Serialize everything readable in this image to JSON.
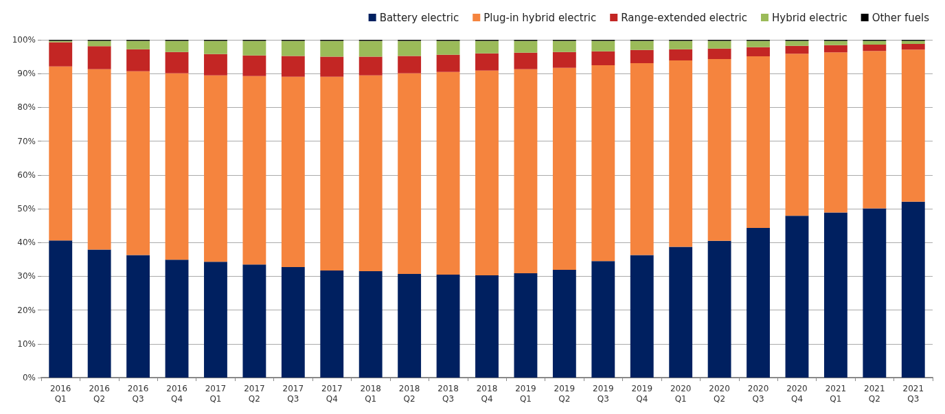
{
  "chart_data": {
    "type": "bar",
    "stacked": true,
    "legend": "top right",
    "grid": "y",
    "categories": [
      "2016\nQ1",
      "2016\nQ2",
      "2016\nQ3",
      "2016\nQ4",
      "2017\nQ1",
      "2017\nQ2",
      "2017\nQ3",
      "2017\nQ4",
      "2018\nQ1",
      "2018\nQ2",
      "2018\nQ3",
      "2018\nQ4",
      "2019\nQ1",
      "2019\nQ2",
      "2019\nQ3",
      "2019\nQ4",
      "2020\nQ1",
      "2020\nQ2",
      "2020\nQ3",
      "2020\nQ4",
      "2021\nQ1",
      "2021\nQ2",
      "2021\nQ3"
    ],
    "ylim": [
      0,
      100
    ],
    "yticks": [
      {
        "value": 0,
        "label": "0%"
      },
      {
        "value": 10,
        "label": "10%"
      },
      {
        "value": 20,
        "label": "20%"
      },
      {
        "value": 30,
        "label": "30%"
      },
      {
        "value": 40,
        "label": "40%"
      },
      {
        "value": 50,
        "label": "50%"
      },
      {
        "value": 60,
        "label": "60%"
      },
      {
        "value": 70,
        "label": "70%"
      },
      {
        "value": 80,
        "label": "80%"
      },
      {
        "value": 90,
        "label": "90%"
      },
      {
        "value": 100,
        "label": "100%"
      }
    ],
    "series": [
      {
        "name": "Battery electric",
        "color": "#002060",
        "values": [
          40.6,
          37.9,
          36.3,
          34.9,
          34.3,
          33.5,
          32.7,
          31.7,
          31.5,
          30.7,
          30.5,
          30.3,
          30.9,
          31.9,
          34.5,
          36.3,
          38.7,
          40.5,
          44.3,
          47.9,
          48.9,
          50.1,
          52.1
        ]
      },
      {
        "name": "Plug-in hybrid electric",
        "color": "#f5843e",
        "values": [
          51.5,
          53.4,
          54.4,
          55.2,
          55.2,
          55.8,
          56.4,
          57.4,
          58.0,
          59.4,
          60.0,
          60.6,
          60.4,
          59.8,
          58.0,
          56.8,
          55.2,
          53.8,
          50.8,
          48.0,
          47.4,
          46.6,
          45.0
        ]
      },
      {
        "name": "Range-extended electric",
        "color": "#c32624",
        "values": [
          7.2,
          6.8,
          6.5,
          6.3,
          6.3,
          6.1,
          6.1,
          5.9,
          5.5,
          5.1,
          5.1,
          5.1,
          4.9,
          4.7,
          4.1,
          3.9,
          3.3,
          3.1,
          2.7,
          2.3,
          2.1,
          1.9,
          1.7
        ]
      },
      {
        "name": "Hybrid electric",
        "color": "#9bbb59",
        "values": [
          0.4,
          1.6,
          2.5,
          3.3,
          3.9,
          4.3,
          4.5,
          4.7,
          4.7,
          4.5,
          4.1,
          3.7,
          3.5,
          3.3,
          3.1,
          2.7,
          2.5,
          2.3,
          1.9,
          1.5,
          1.3,
          1.1,
          0.9
        ]
      },
      {
        "name": "Other fuels",
        "color": "#000000",
        "values": [
          0.3,
          0.3,
          0.3,
          0.3,
          0.3,
          0.3,
          0.3,
          0.3,
          0.3,
          0.3,
          0.3,
          0.3,
          0.3,
          0.3,
          0.3,
          0.3,
          0.3,
          0.3,
          0.3,
          0.3,
          0.3,
          0.3,
          0.3
        ]
      }
    ]
  }
}
